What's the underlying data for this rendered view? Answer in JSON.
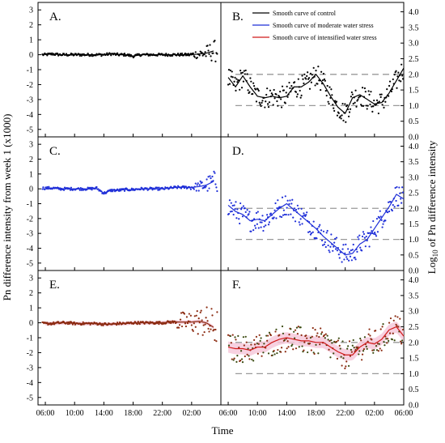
{
  "figure": {
    "ylabel_left": "Pn difference intensity from week 1 (x1000)",
    "ylabel_right_prefix": "Log",
    "ylabel_right_sub": "10",
    "ylabel_right_suffix": " of Pn difference intensity",
    "xlabel": "Time",
    "legend": [
      {
        "label": "Smooth curve of control",
        "color": "#000000"
      },
      {
        "label": "Smooth curve of moderate water stress",
        "color": "#1f2fd8"
      },
      {
        "label": "Smooth curve of intensified water stress",
        "color": "#d11a1a"
      }
    ]
  },
  "chart_data": [
    {
      "panel": "A.",
      "type": "scatter",
      "color": "#000000",
      "x_ticks": [
        "06:00",
        "10:00",
        "14:00",
        "18:00",
        "22:00",
        "02:00"
      ],
      "y_ticks": [
        "3",
        "2",
        "1",
        "0",
        "-1",
        "-2",
        "-3",
        "-4",
        "-5"
      ],
      "ylim": [
        -5.5,
        3.5
      ],
      "description_values": {
        "x_hours": [
          6,
          7,
          8,
          9,
          10,
          11,
          12,
          13,
          14,
          15,
          16,
          17,
          18,
          19,
          20,
          21,
          22,
          23,
          24,
          25,
          26,
          27,
          28,
          29
        ],
        "y": [
          0.0,
          0.05,
          0.0,
          0.0,
          0.0,
          0.0,
          0.0,
          0.0,
          0.0,
          0.05,
          0.0,
          0.0,
          -0.1,
          0.0,
          0.0,
          0.0,
          0.0,
          0.0,
          0.0,
          0.0,
          0.0,
          0.05,
          0.1,
          0.25
        ]
      }
    },
    {
      "panel": "B.",
      "type": "line",
      "color": "#000000",
      "x_ticks": [
        "06:00",
        "10:00",
        "14:00",
        "18:00",
        "22:00",
        "02:00",
        "06:00"
      ],
      "y_ticks": [
        "4.0",
        "3.5",
        "3.0",
        "2.5",
        "2.0",
        "1.5",
        "1.0",
        "0.5",
        "0.0"
      ],
      "ylim": [
        0,
        4.3
      ],
      "reference_lines": [
        2.0,
        1.0
      ],
      "smooth": {
        "x_hours": [
          6,
          7,
          8,
          9,
          10,
          11,
          12,
          13,
          14,
          15,
          16,
          17,
          18,
          19,
          20,
          21,
          22,
          23,
          24,
          25,
          26,
          27,
          28,
          29,
          30
        ],
        "y": [
          1.9,
          1.6,
          1.95,
          1.6,
          1.3,
          1.25,
          1.3,
          1.25,
          1.3,
          1.6,
          1.6,
          1.75,
          2.0,
          1.7,
          1.3,
          0.95,
          0.75,
          1.25,
          1.35,
          1.2,
          1.05,
          1.1,
          1.4,
          1.8,
          2.2
        ]
      }
    },
    {
      "panel": "C.",
      "type": "scatter",
      "color": "#1f2fd8",
      "x_ticks": [
        "06:00",
        "10:00",
        "14:00",
        "18:00",
        "22:00",
        "02:00"
      ],
      "y_ticks": [
        "3",
        "2",
        "1",
        "0",
        "-1",
        "-2",
        "-3",
        "-4",
        "-5"
      ],
      "ylim": [
        -5.5,
        3.5
      ],
      "description_values": {
        "x_hours": [
          6,
          7,
          8,
          9,
          10,
          11,
          12,
          13,
          14,
          15,
          16,
          17,
          18,
          19,
          20,
          21,
          22,
          23,
          24,
          25,
          26,
          27,
          28,
          29
        ],
        "y": [
          0.05,
          0.05,
          0.0,
          0.0,
          0.0,
          0.0,
          0.0,
          0.05,
          -0.3,
          -0.1,
          -0.1,
          -0.05,
          -0.05,
          0.0,
          0.0,
          0.0,
          0.0,
          0.05,
          0.1,
          0.1,
          0.1,
          0.15,
          0.25,
          0.5
        ]
      }
    },
    {
      "panel": "D.",
      "type": "line",
      "color": "#1f2fd8",
      "x_ticks": [
        "06:00",
        "10:00",
        "14:00",
        "18:00",
        "22:00",
        "02:00",
        "06:00"
      ],
      "y_ticks": [
        "4.0",
        "3.5",
        "3.0",
        "2.5",
        "2.0",
        "1.5",
        "1.0",
        "0.5",
        "0.0"
      ],
      "ylim": [
        0,
        4.3
      ],
      "reference_lines": [
        2.0,
        1.0
      ],
      "smooth": {
        "x_hours": [
          6,
          7,
          8,
          9,
          10,
          11,
          12,
          13,
          14,
          15,
          16,
          17,
          18,
          19,
          20,
          21,
          22,
          23,
          24,
          25,
          26,
          27,
          28,
          29,
          30
        ],
        "y": [
          2.1,
          1.9,
          1.8,
          1.6,
          1.65,
          1.6,
          1.8,
          2.0,
          2.15,
          1.95,
          1.75,
          1.55,
          1.35,
          1.1,
          0.9,
          0.7,
          0.5,
          0.55,
          0.85,
          1.0,
          1.35,
          1.7,
          2.05,
          2.45,
          2.3
        ]
      }
    },
    {
      "panel": "E.",
      "type": "scatter",
      "color": "#8b2a10",
      "x_ticks": [
        "06:00",
        "10:00",
        "14:00",
        "18:00",
        "22:00",
        "02:00"
      ],
      "y_ticks": [
        "3",
        "2",
        "1",
        "0",
        "-1",
        "-2",
        "-3",
        "-4",
        "-5"
      ],
      "ylim": [
        -5.5,
        3.5
      ],
      "description_values": {
        "x_hours": [
          6,
          7,
          8,
          9,
          10,
          11,
          12,
          13,
          14,
          15,
          16,
          17,
          18,
          19,
          20,
          21,
          22,
          23,
          24,
          25,
          26,
          27,
          28,
          29
        ],
        "y": [
          -0.05,
          -0.05,
          0.0,
          0.0,
          -0.05,
          -0.05,
          -0.05,
          -0.05,
          -0.1,
          -0.1,
          -0.05,
          -0.05,
          0.0,
          0.0,
          0.0,
          0.0,
          0.0,
          0.05,
          0.05,
          0.05,
          0.05,
          0.1,
          0.0,
          -0.3
        ]
      }
    },
    {
      "panel": "F.",
      "type": "line",
      "color": "#d11a1a",
      "x_ticks": [
        "06:00",
        "10:00",
        "14:00",
        "18:00",
        "22:00",
        "02:00",
        "06:00"
      ],
      "y_ticks": [
        "4.0",
        "3.5",
        "3.0",
        "2.5",
        "2.0",
        "1.5",
        "1.0",
        "0.5",
        "0.0"
      ],
      "ylim": [
        0,
        4.3
      ],
      "reference_lines": [
        2.0,
        1.0
      ],
      "smooth": {
        "x_hours": [
          6,
          7,
          8,
          9,
          10,
          11,
          12,
          13,
          14,
          15,
          16,
          17,
          18,
          19,
          20,
          21,
          22,
          23,
          24,
          25,
          26,
          27,
          28,
          29,
          30
        ],
        "y": [
          1.85,
          1.8,
          1.8,
          1.75,
          1.85,
          1.85,
          2.0,
          2.1,
          2.15,
          2.1,
          2.05,
          2.05,
          2.0,
          2.0,
          1.85,
          1.7,
          1.6,
          1.6,
          1.85,
          2.0,
          1.95,
          2.1,
          2.4,
          2.5,
          2.2
        ]
      }
    }
  ]
}
